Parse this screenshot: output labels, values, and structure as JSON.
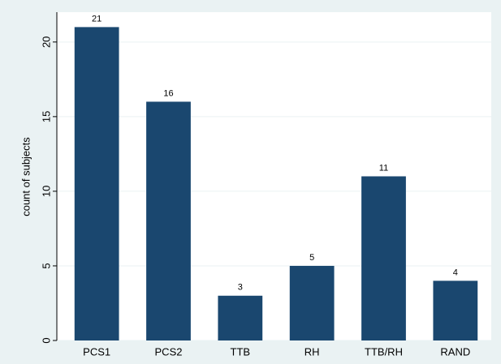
{
  "chart_data": {
    "type": "bar",
    "y_label": "count of subjects",
    "categories": [
      "PCS1",
      "PCS2",
      "TTB",
      "RH",
      "TTB/RH",
      "RAND"
    ],
    "values": [
      21,
      16,
      3,
      5,
      11,
      4
    ],
    "color": "#1a476f",
    "ylim": [
      0,
      22
    ],
    "yticks": [
      0,
      5,
      10,
      15,
      20
    ],
    "grid": true
  }
}
